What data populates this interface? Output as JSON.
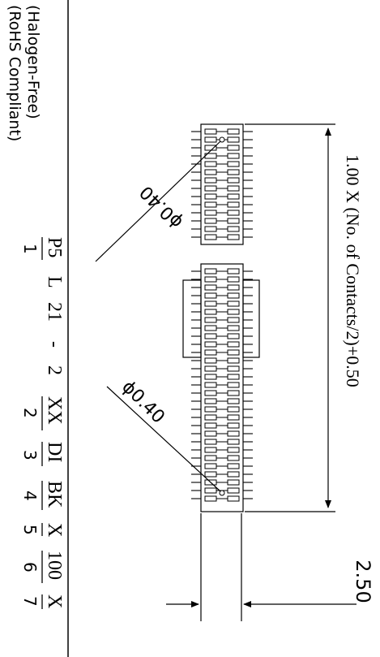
{
  "compliance": {
    "rohs": "(RoHS Compliant)",
    "halogen": "(Halogen-Free)"
  },
  "part_number": {
    "segments": [
      {
        "code": "P5",
        "index": "1"
      },
      {
        "code": "L",
        "index": ""
      },
      {
        "code": "21",
        "index": ""
      },
      {
        "code": "-",
        "index": ""
      },
      {
        "code": "2",
        "index": ""
      },
      {
        "code": "XX",
        "index": "2"
      },
      {
        "code": "DI",
        "index": "3"
      },
      {
        "code": "BK",
        "index": "4"
      },
      {
        "code": "X",
        "index": "5"
      },
      {
        "code": "100",
        "index": "6"
      },
      {
        "code": "X",
        "index": "7"
      }
    ]
  },
  "dimensions": {
    "length_formula": "1.00 X (No. of Contacts/2)+0.50",
    "width": "2.50",
    "hole_top": "ϕ0.40",
    "hole_bottom": "ϕ0.40"
  },
  "colors": {
    "line": "#000000",
    "background": "#ffffff"
  }
}
